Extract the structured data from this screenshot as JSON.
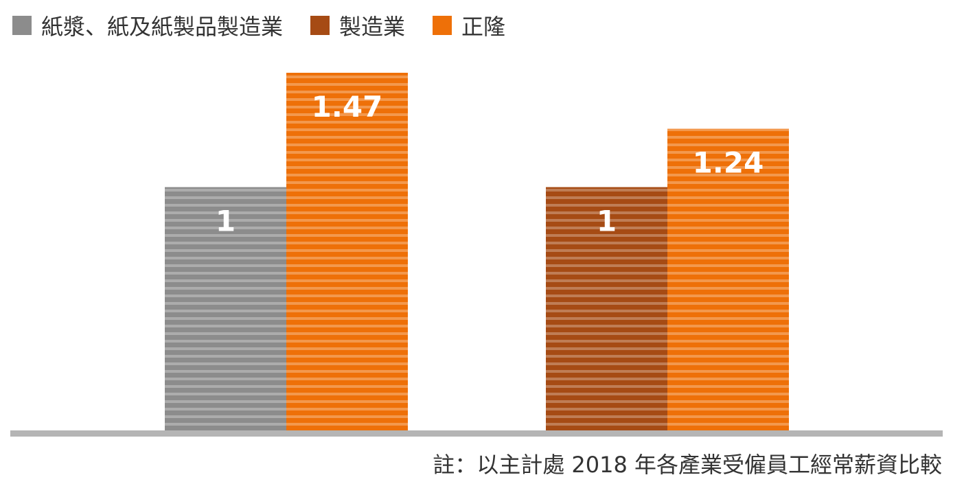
{
  "legend": [
    {
      "label": "紙漿、紙及紙製品製造業",
      "color": "#8c8c8c"
    },
    {
      "label": "製造業",
      "color": "#a64b14"
    },
    {
      "label": "正隆",
      "color": "#ee7008"
    }
  ],
  "note": "註：以主計處 2018 年各產業受僱員工經常薪資比較",
  "chart_data": {
    "type": "bar",
    "groups": [
      {
        "bars": [
          {
            "series": "紙漿、紙及紙製品製造業",
            "value": 1,
            "label": "1",
            "color": "#8c8c8c"
          },
          {
            "series": "正隆",
            "value": 1.47,
            "label": "1.47",
            "color": "#ee7008"
          }
        ]
      },
      {
        "bars": [
          {
            "series": "製造業",
            "value": 1,
            "label": "1",
            "color": "#a64b14"
          },
          {
            "series": "正隆",
            "value": 1.24,
            "label": "1.24",
            "color": "#ee7008"
          }
        ]
      }
    ],
    "ylim": [
      0,
      1.47
    ],
    "grid": false,
    "legend_position": "top-left",
    "axis_color": "#b5b5b5"
  }
}
